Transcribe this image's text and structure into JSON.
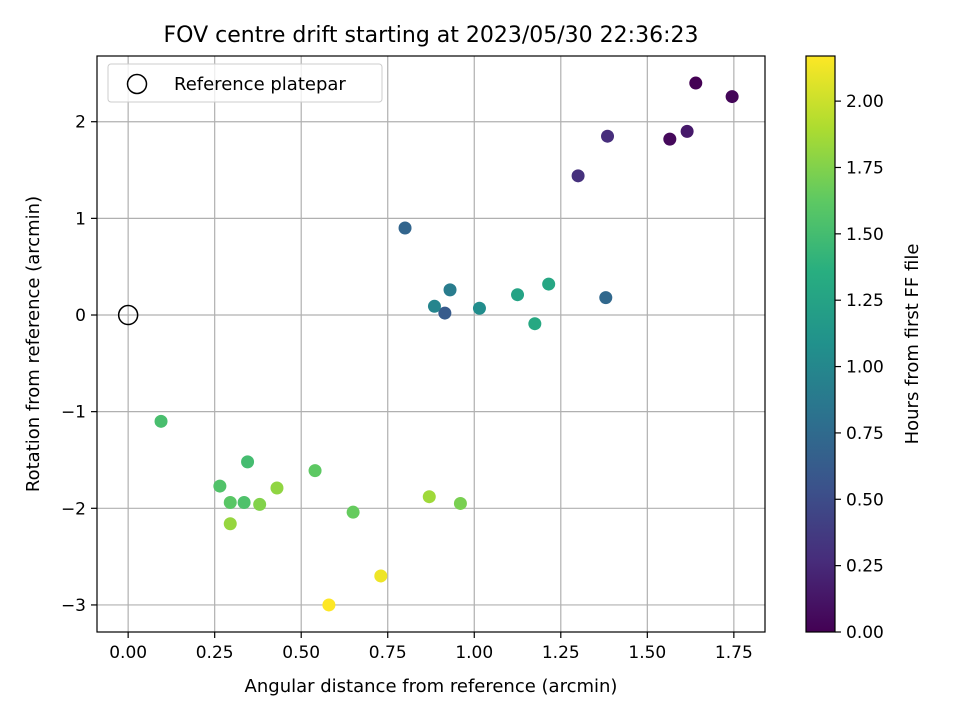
{
  "chart_data": {
    "type": "scatter",
    "title": "FOV centre drift starting at 2023/05/30 22:36:23",
    "xlabel": "Angular distance from reference (arcmin)",
    "ylabel": "Rotation from reference (arcmin)",
    "xlim": [
      -0.09,
      1.84
    ],
    "ylim": [
      -3.28,
      2.68
    ],
    "xticks": [
      0.0,
      0.25,
      0.5,
      0.75,
      1.0,
      1.25,
      1.5,
      1.75
    ],
    "xtick_labels": [
      "0.00",
      "0.25",
      "0.50",
      "0.75",
      "1.00",
      "1.25",
      "1.50",
      "1.75"
    ],
    "yticks": [
      -3,
      -2,
      -1,
      0,
      1,
      2
    ],
    "ytick_labels": [
      "−3",
      "−2",
      "−1",
      "0",
      "1",
      "2"
    ],
    "grid": true,
    "legend": {
      "placement": "top-left",
      "entries": [
        "Reference platepar"
      ]
    },
    "reference_point": {
      "x": 0.0,
      "y": 0.0
    },
    "colorbar": {
      "label": "Hours from first FF file",
      "colormap": "viridis",
      "range": [
        0.0,
        2.17
      ],
      "ticks": [
        0.0,
        0.25,
        0.5,
        0.75,
        1.0,
        1.25,
        1.5,
        1.75,
        2.0
      ],
      "tick_labels": [
        "0.00",
        "0.25",
        "0.50",
        "0.75",
        "1.00",
        "1.25",
        "1.50",
        "1.75",
        "2.00"
      ]
    },
    "points": [
      {
        "x": 1.64,
        "y": 2.4,
        "c": 0.0
      },
      {
        "x": 1.745,
        "y": 2.26,
        "c": 0.03
      },
      {
        "x": 1.565,
        "y": 1.82,
        "c": 0.05
      },
      {
        "x": 1.615,
        "y": 1.9,
        "c": 0.15
      },
      {
        "x": 1.385,
        "y": 1.85,
        "c": 0.28
      },
      {
        "x": 1.3,
        "y": 1.44,
        "c": 0.3
      },
      {
        "x": 0.8,
        "y": 0.9,
        "c": 0.7
      },
      {
        "x": 1.38,
        "y": 0.18,
        "c": 0.73
      },
      {
        "x": 0.915,
        "y": 0.02,
        "c": 0.62
      },
      {
        "x": 0.93,
        "y": 0.26,
        "c": 0.9
      },
      {
        "x": 0.885,
        "y": 0.09,
        "c": 0.98
      },
      {
        "x": 1.015,
        "y": 0.07,
        "c": 1.05
      },
      {
        "x": 1.125,
        "y": 0.21,
        "c": 1.25
      },
      {
        "x": 1.215,
        "y": 0.32,
        "c": 1.28
      },
      {
        "x": 1.175,
        "y": -0.09,
        "c": 1.3
      },
      {
        "x": 0.095,
        "y": -1.1,
        "c": 1.52
      },
      {
        "x": 0.345,
        "y": -1.52,
        "c": 1.5
      },
      {
        "x": 0.265,
        "y": -1.77,
        "c": 1.56
      },
      {
        "x": 0.335,
        "y": -1.94,
        "c": 1.55
      },
      {
        "x": 0.295,
        "y": -1.94,
        "c": 1.6
      },
      {
        "x": 0.54,
        "y": -1.61,
        "c": 1.62
      },
      {
        "x": 0.65,
        "y": -2.04,
        "c": 1.65
      },
      {
        "x": 0.38,
        "y": -1.96,
        "c": 1.75
      },
      {
        "x": 0.43,
        "y": -1.79,
        "c": 1.8
      },
      {
        "x": 0.295,
        "y": -2.16,
        "c": 1.82
      },
      {
        "x": 0.96,
        "y": -1.95,
        "c": 1.72
      },
      {
        "x": 0.87,
        "y": -1.88,
        "c": 1.85
      },
      {
        "x": 0.73,
        "y": -2.7,
        "c": 2.12
      },
      {
        "x": 0.58,
        "y": -3.0,
        "c": 2.17
      }
    ]
  }
}
